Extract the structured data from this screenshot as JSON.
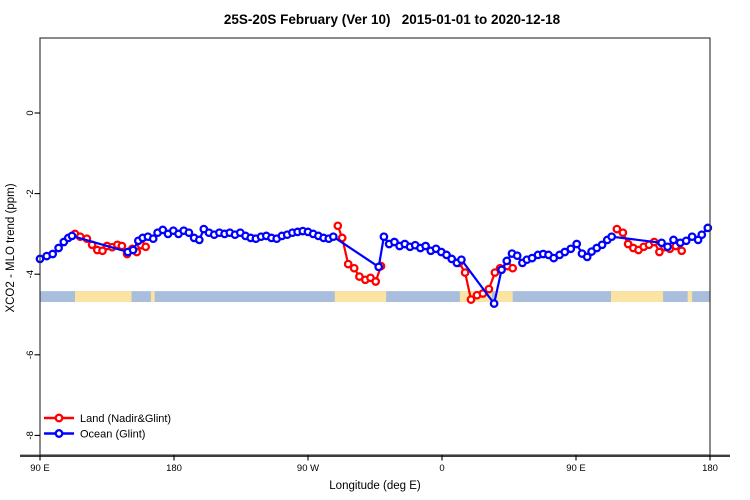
{
  "title": "25S-20S February (Ver 10)   2015-01-01 to 2020-12-18",
  "chart_data": {
    "type": "line",
    "title": "25S-20S February (Ver 10)   2015-01-01 to 2020-12-18",
    "xlabel": "Longitude (deg E)",
    "ylabel": "XCO2 - MLO trend (ppm)",
    "x_axis": {
      "range": [
        90,
        540
      ],
      "ticks": [
        90,
        180,
        270,
        360,
        450,
        540
      ],
      "tick_labels": [
        "90 E",
        "180",
        "90 W",
        "0",
        "90 E",
        "180"
      ]
    },
    "y_axis": {
      "range": [
        1.85,
        -8.5
      ],
      "ticks": [
        0,
        -2,
        -4,
        -6,
        -8
      ],
      "tick_labels": [
        "0",
        "-2",
        "-4",
        "-6",
        "-8"
      ]
    },
    "grid": "off",
    "legend": {
      "position": "bottom-left",
      "entries": [
        "Land (Nadir&Glint)",
        "Ocean (Glint)"
      ]
    },
    "band": {
      "description": "latitude strip map 25S-20S: ocean vs land along longitude",
      "y_top": -4.42,
      "y_bottom": -4.69,
      "ocean_color": "#a8bedc",
      "land_color": "#fbe3a2",
      "land_segments_lon": [
        [
          113.5,
          151.5
        ],
        [
          164.5,
          167
        ],
        [
          288,
          322.5
        ],
        [
          372,
          393.5
        ],
        [
          395.5,
          407.5
        ],
        [
          473.5,
          508.5
        ],
        [
          525,
          528
        ]
      ]
    },
    "series": [
      {
        "name": "Land (Nadir&Glint)",
        "color": "#ff0000",
        "marker": "open-circle",
        "segments": [
          [
            [
              113.5,
              -3.0
            ],
            [
              117,
              -3.07
            ],
            [
              121.5,
              -3.12
            ],
            [
              125,
              -3.27
            ],
            [
              128.5,
              -3.4
            ],
            [
              132,
              -3.42
            ],
            [
              135,
              -3.3
            ],
            [
              138.5,
              -3.33
            ],
            [
              142,
              -3.27
            ],
            [
              145,
              -3.3
            ],
            [
              148.5,
              -3.5
            ],
            [
              152,
              -3.37
            ],
            [
              155,
              -3.45
            ],
            [
              158,
              -3.28
            ],
            [
              161,
              -3.32
            ]
          ],
          [
            [
              290,
              -2.8
            ],
            [
              293,
              -3.1
            ],
            [
              297,
              -3.75
            ],
            [
              301,
              -3.85
            ],
            [
              304.5,
              -4.06
            ],
            [
              308.5,
              -4.14
            ],
            [
              312,
              -4.09
            ],
            [
              315.5,
              -4.18
            ],
            [
              319,
              -3.8
            ]
          ],
          [
            [
              371.5,
              -3.72
            ],
            [
              375.5,
              -3.96
            ],
            [
              379.5,
              -4.63
            ],
            [
              383.5,
              -4.52
            ],
            [
              387.5,
              -4.48
            ],
            [
              391.5,
              -4.37
            ],
            [
              395.5,
              -3.96
            ],
            [
              399,
              -3.85
            ],
            [
              404,
              -3.8
            ],
            [
              407.5,
              -3.85
            ]
          ],
          [
            [
              477.5,
              -2.88
            ],
            [
              481.5,
              -2.97
            ],
            [
              485,
              -3.25
            ],
            [
              488.5,
              -3.35
            ],
            [
              492,
              -3.4
            ],
            [
              495.5,
              -3.32
            ],
            [
              499,
              -3.27
            ],
            [
              502.5,
              -3.2
            ],
            [
              506,
              -3.45
            ],
            [
              509.5,
              -3.33
            ],
            [
              513,
              -3.37
            ],
            [
              517,
              -3.3
            ],
            [
              521,
              -3.42
            ]
          ]
        ]
      },
      {
        "name": "Ocean (Glint)",
        "color": "#0000ff",
        "marker": "open-circle",
        "segments": [
          [
            [
              90,
              -3.62
            ],
            [
              94.5,
              -3.55
            ],
            [
              98.5,
              -3.5
            ],
            [
              102.5,
              -3.35
            ],
            [
              106,
              -3.2
            ],
            [
              109,
              -3.1
            ],
            [
              111.5,
              -3.05
            ],
            [
              149,
              -3.45
            ],
            [
              152.5,
              -3.4
            ],
            [
              156,
              -3.17
            ],
            [
              159,
              -3.1
            ],
            [
              162.5,
              -3.07
            ],
            [
              166,
              -3.12
            ],
            [
              169,
              -2.97
            ],
            [
              172.5,
              -2.9
            ],
            [
              176,
              -3.0
            ],
            [
              179.5,
              -2.92
            ],
            [
              183,
              -3.0
            ],
            [
              186.5,
              -2.92
            ],
            [
              190,
              -2.97
            ],
            [
              193.5,
              -3.1
            ],
            [
              197,
              -3.15
            ],
            [
              200,
              -2.88
            ],
            [
              203.5,
              -2.97
            ],
            [
              207,
              -3.02
            ],
            [
              210.5,
              -2.97
            ],
            [
              214,
              -3.0
            ],
            [
              217.5,
              -2.97
            ],
            [
              221,
              -3.02
            ],
            [
              224.5,
              -2.97
            ],
            [
              228,
              -3.05
            ],
            [
              231.5,
              -3.1
            ],
            [
              235,
              -3.12
            ],
            [
              238.5,
              -3.07
            ],
            [
              242,
              -3.05
            ],
            [
              245.5,
              -3.1
            ],
            [
              249,
              -3.12
            ],
            [
              252.5,
              -3.05
            ],
            [
              256,
              -3.02
            ],
            [
              259.5,
              -2.97
            ],
            [
              263,
              -2.95
            ],
            [
              266.5,
              -2.93
            ],
            [
              270,
              -2.95
            ],
            [
              273.5,
              -3.0
            ],
            [
              277,
              -3.05
            ],
            [
              280.5,
              -3.1
            ],
            [
              284,
              -3.12
            ],
            [
              287,
              -3.07
            ],
            [
              317.5,
              -3.82
            ],
            [
              321,
              -3.07
            ],
            [
              324.5,
              -3.25
            ],
            [
              328,
              -3.2
            ],
            [
              331.5,
              -3.3
            ],
            [
              335,
              -3.25
            ],
            [
              338.5,
              -3.32
            ],
            [
              342,
              -3.28
            ],
            [
              345.5,
              -3.35
            ],
            [
              349,
              -3.3
            ],
            [
              352.5,
              -3.42
            ],
            [
              356,
              -3.37
            ],
            [
              359.5,
              -3.45
            ],
            [
              363,
              -3.52
            ],
            [
              366.5,
              -3.62
            ],
            [
              370,
              -3.72
            ],
            [
              373,
              -3.64
            ],
            [
              395,
              -4.73
            ],
            [
              400,
              -3.89
            ],
            [
              403.5,
              -3.67
            ],
            [
              407,
              -3.49
            ],
            [
              410.5,
              -3.54
            ],
            [
              414,
              -3.72
            ],
            [
              417,
              -3.64
            ],
            [
              420.5,
              -3.6
            ],
            [
              424.5,
              -3.52
            ],
            [
              428,
              -3.5
            ],
            [
              431.5,
              -3.52
            ],
            [
              435,
              -3.6
            ],
            [
              439,
              -3.52
            ],
            [
              442.5,
              -3.45
            ],
            [
              446.5,
              -3.37
            ],
            [
              450.5,
              -3.25
            ],
            [
              454,
              -3.49
            ],
            [
              457.5,
              -3.57
            ],
            [
              460.5,
              -3.44
            ],
            [
              464,
              -3.35
            ],
            [
              467.5,
              -3.27
            ],
            [
              471,
              -3.15
            ],
            [
              474,
              -3.07
            ],
            [
              507.5,
              -3.22
            ],
            [
              511.5,
              -3.32
            ],
            [
              515.5,
              -3.15
            ],
            [
              520,
              -3.22
            ],
            [
              524,
              -3.17
            ],
            [
              528,
              -3.07
            ],
            [
              532,
              -3.15
            ],
            [
              534.5,
              -3.02
            ],
            [
              538.5,
              -2.85
            ]
          ]
        ]
      }
    ]
  },
  "colors": {
    "land_series": "#ff0000",
    "ocean_series": "#0000ff",
    "band_ocean": "#a8bedc",
    "band_land": "#fbe3a2",
    "axis": "#3d3d3d"
  }
}
